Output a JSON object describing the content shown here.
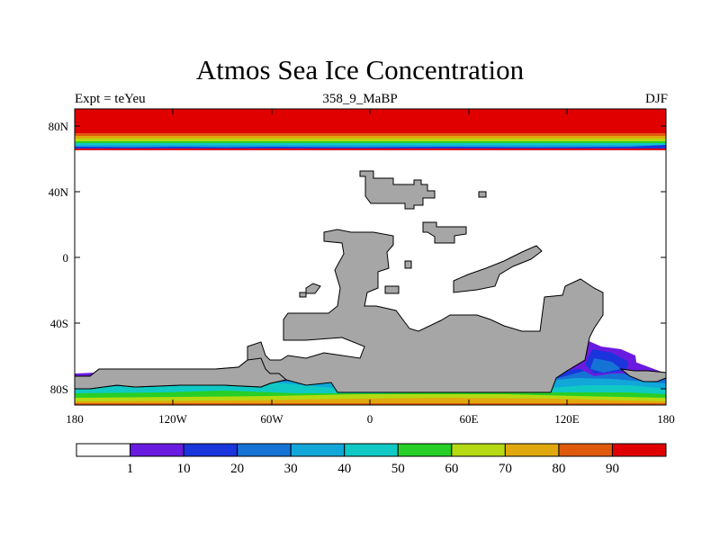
{
  "header": {
    "title": "Atmos Sea Ice Concentration",
    "experiment": "Expt = teYeu",
    "time_slice": "358_9_MaBP",
    "season": "DJF"
  },
  "map": {
    "type": "filled-contour map",
    "projection": "cylindrical equidistant",
    "lon_range": [
      -180,
      180
    ],
    "lat_range": [
      -90,
      90
    ],
    "x_tick_labels": [
      "180",
      "120W",
      "60W",
      "0",
      "60E",
      "120E",
      "180"
    ],
    "y_tick_labels": [
      "80N",
      "40N",
      "0",
      "40S",
      "80S"
    ],
    "land_color": "#a6a6a6",
    "ocean_color": "#ffffff"
  },
  "colorbar": {
    "boundary_labels": [
      "1",
      "10",
      "20",
      "30",
      "40",
      "50",
      "60",
      "70",
      "80",
      "90"
    ],
    "colors": [
      "#ffffff",
      "#6a1be0",
      "#1a35db",
      "#1673d6",
      "#12a7d9",
      "#10c9c4",
      "#27cf27",
      "#b5d912",
      "#e0a80d",
      "#e05a0c",
      "#e00000"
    ]
  }
}
